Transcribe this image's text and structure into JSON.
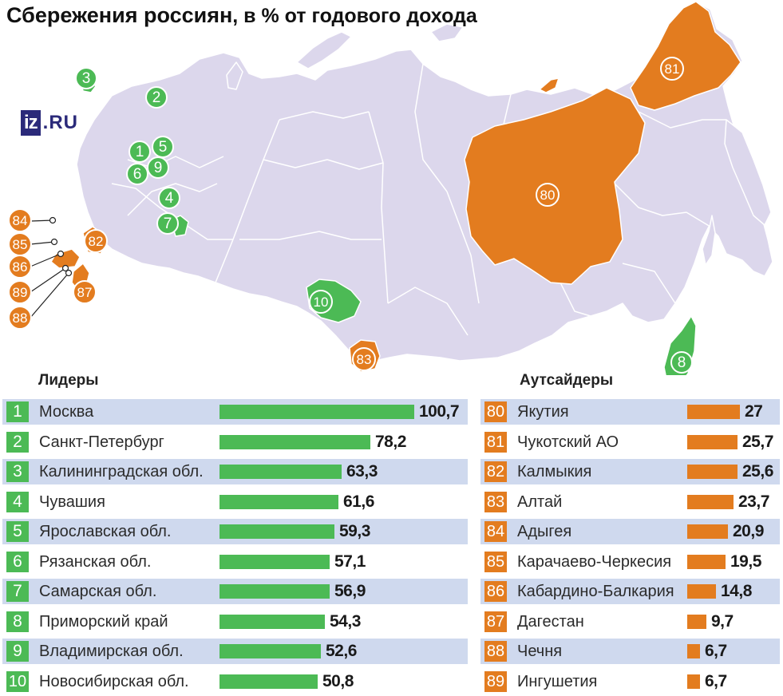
{
  "title": {
    "main": "Сбережения россиян",
    "rest": ", в % от годового дохода"
  },
  "logo": {
    "mark": "iz",
    "suffix": ".RU"
  },
  "colors": {
    "leader": "#4cba55",
    "outsider": "#e37c1f",
    "land": "#dcd7ec",
    "border": "#ffffff",
    "band": "#cfd9ee"
  },
  "map": {
    "leader_markers": [
      "1",
      "2",
      "3",
      "4",
      "5",
      "6",
      "7",
      "8",
      "9",
      "10"
    ],
    "outsider_markers": [
      "80",
      "81",
      "82",
      "83",
      "84",
      "85",
      "86",
      "87",
      "88",
      "89"
    ]
  },
  "leaders": {
    "heading": "Лидеры",
    "max": 100.7,
    "rows": [
      {
        "rank": "1",
        "name": "Москва",
        "value": 100.7,
        "label": "100,7"
      },
      {
        "rank": "2",
        "name": "Санкт-Петербург",
        "value": 78.2,
        "label": "78,2"
      },
      {
        "rank": "3",
        "name": "Калининградская обл.",
        "value": 63.3,
        "label": "63,3"
      },
      {
        "rank": "4",
        "name": "Чувашия",
        "value": 61.6,
        "label": "61,6"
      },
      {
        "rank": "5",
        "name": "Ярославская обл.",
        "value": 59.3,
        "label": "59,3"
      },
      {
        "rank": "6",
        "name": "Рязанская обл.",
        "value": 57.1,
        "label": "57,1"
      },
      {
        "rank": "7",
        "name": "Самарская обл.",
        "value": 56.9,
        "label": "56,9"
      },
      {
        "rank": "8",
        "name": "Приморский край",
        "value": 54.3,
        "label": "54,3"
      },
      {
        "rank": "9",
        "name": "Владимирская обл.",
        "value": 52.6,
        "label": "52,6"
      },
      {
        "rank": "10",
        "name": "Новосибирская обл.",
        "value": 50.8,
        "label": "50,8"
      }
    ]
  },
  "outsiders": {
    "heading": "Аутсайдеры",
    "max": 27,
    "rows": [
      {
        "rank": "80",
        "name": "Якутия",
        "value": 27,
        "label": "27"
      },
      {
        "rank": "81",
        "name": "Чукотский АО",
        "value": 25.7,
        "label": "25,7"
      },
      {
        "rank": "82",
        "name": "Калмыкия",
        "value": 25.6,
        "label": "25,6"
      },
      {
        "rank": "83",
        "name": "Алтай",
        "value": 23.7,
        "label": "23,7"
      },
      {
        "rank": "84",
        "name": "Адыгея",
        "value": 20.9,
        "label": "20,9"
      },
      {
        "rank": "85",
        "name": "Карачаево-Черкесия",
        "value": 19.5,
        "label": "19,5"
      },
      {
        "rank": "86",
        "name": "Кабардино-Балкария",
        "value": 14.8,
        "label": "14,8"
      },
      {
        "rank": "87",
        "name": "Дагестан",
        "value": 9.7,
        "label": "9,7"
      },
      {
        "rank": "88",
        "name": "Чечня",
        "value": 6.7,
        "label": "6,7"
      },
      {
        "rank": "89",
        "name": "Ингушетия",
        "value": 6.7,
        "label": "6,7"
      }
    ]
  }
}
